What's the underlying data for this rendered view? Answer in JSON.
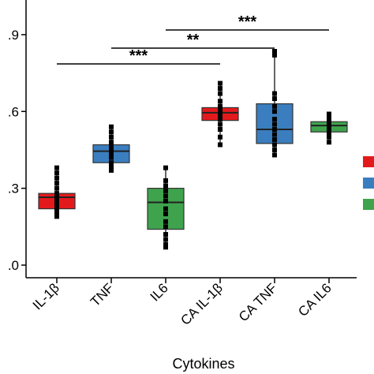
{
  "chart_data": {
    "type": "box",
    "xlabel": "Cytokines",
    "ylabel": "",
    "ylim": [
      0.0,
      1.1
    ],
    "yticks": [
      {
        "value": 0.0,
        "label": ".0"
      },
      {
        "value": 0.3,
        "label": ".3"
      },
      {
        "value": 0.6,
        "label": ".6"
      },
      {
        "value": 0.9,
        "label": ".9"
      }
    ],
    "grid": false,
    "categories": [
      "IL-1β",
      "TNF",
      "IL6",
      "CA IL-1β",
      "CA TNF",
      "CA IL6"
    ],
    "boxes": [
      {
        "category": "IL-1β",
        "color": "#e31a1c",
        "whisker_low": 0.19,
        "q1": 0.22,
        "median": 0.265,
        "q3": 0.28,
        "whisker_high": 0.38,
        "points": [
          0.19,
          0.2,
          0.21,
          0.22,
          0.23,
          0.24,
          0.25,
          0.26,
          0.27,
          0.28,
          0.3,
          0.32,
          0.34,
          0.36,
          0.38
        ]
      },
      {
        "category": "TNF",
        "color": "#3a7ebf",
        "whisker_low": 0.37,
        "q1": 0.4,
        "median": 0.445,
        "q3": 0.47,
        "whisker_high": 0.54,
        "points": [
          0.37,
          0.38,
          0.39,
          0.4,
          0.42,
          0.43,
          0.44,
          0.45,
          0.46,
          0.47,
          0.48,
          0.5,
          0.52,
          0.54
        ]
      },
      {
        "category": "IL6",
        "color": "#3fa34d",
        "whisker_low": 0.07,
        "q1": 0.14,
        "median": 0.245,
        "q3": 0.3,
        "whisker_high": 0.38,
        "points": [
          0.07,
          0.08,
          0.1,
          0.12,
          0.15,
          0.17,
          0.2,
          0.22,
          0.25,
          0.27,
          0.29,
          0.31,
          0.33,
          0.38
        ]
      },
      {
        "category": "CA IL-1β",
        "color": "#e31a1c",
        "whisker_low": 0.47,
        "q1": 0.565,
        "median": 0.595,
        "q3": 0.615,
        "whisker_high": 0.71,
        "points": [
          0.47,
          0.5,
          0.53,
          0.55,
          0.57,
          0.58,
          0.59,
          0.6,
          0.61,
          0.62,
          0.64,
          0.67,
          0.69,
          0.71
        ]
      },
      {
        "category": "CA TNF",
        "color": "#3a7ebf",
        "whisker_low": 0.43,
        "q1": 0.475,
        "median": 0.53,
        "q3": 0.63,
        "whisker_high": 0.835,
        "points": [
          0.43,
          0.45,
          0.47,
          0.49,
          0.51,
          0.53,
          0.55,
          0.57,
          0.6,
          0.62,
          0.65,
          0.67,
          0.82,
          0.835
        ]
      },
      {
        "category": "CA IL6",
        "color": "#3fa34d",
        "whisker_low": 0.48,
        "q1": 0.52,
        "median": 0.545,
        "q3": 0.56,
        "whisker_high": 0.59,
        "points": [
          0.48,
          0.5,
          0.51,
          0.52,
          0.53,
          0.54,
          0.55,
          0.56,
          0.57,
          0.58,
          0.59
        ]
      }
    ],
    "significance": [
      {
        "from": "IL-1β",
        "to": "CA IL-1β",
        "label": "***",
        "level": 0
      },
      {
        "from": "TNF",
        "to": "CA TNF",
        "label": "**",
        "level": 1
      },
      {
        "from": "IL6",
        "to": "CA IL6",
        "label": "***",
        "level": 2
      }
    ],
    "legend": {
      "placement": "right",
      "colors": [
        "#e31a1c",
        "#3a7ebf",
        "#3fa34d"
      ]
    }
  }
}
